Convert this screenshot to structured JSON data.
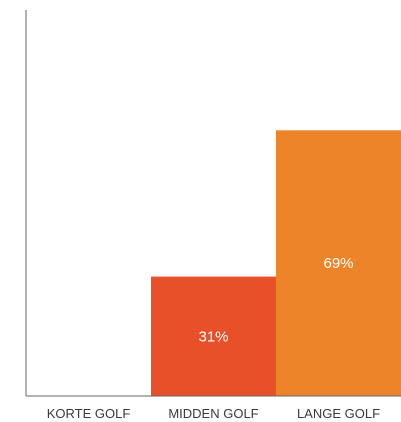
{
  "chart_data": {
    "type": "bar",
    "categories": [
      "KORTE GOLF",
      "MIDDEN GOLF",
      "LANGE GOLF"
    ],
    "values": [
      0,
      31,
      69
    ],
    "data_labels": [
      "",
      "31%",
      "69%"
    ],
    "ylim": [
      0,
      100
    ],
    "colors": [
      "#e8502a",
      "#e8502a",
      "#ee8429"
    ],
    "axis_color": "#666666",
    "label_color": "#ffffff",
    "grid": false,
    "title": "",
    "xlabel": "",
    "ylabel": ""
  }
}
